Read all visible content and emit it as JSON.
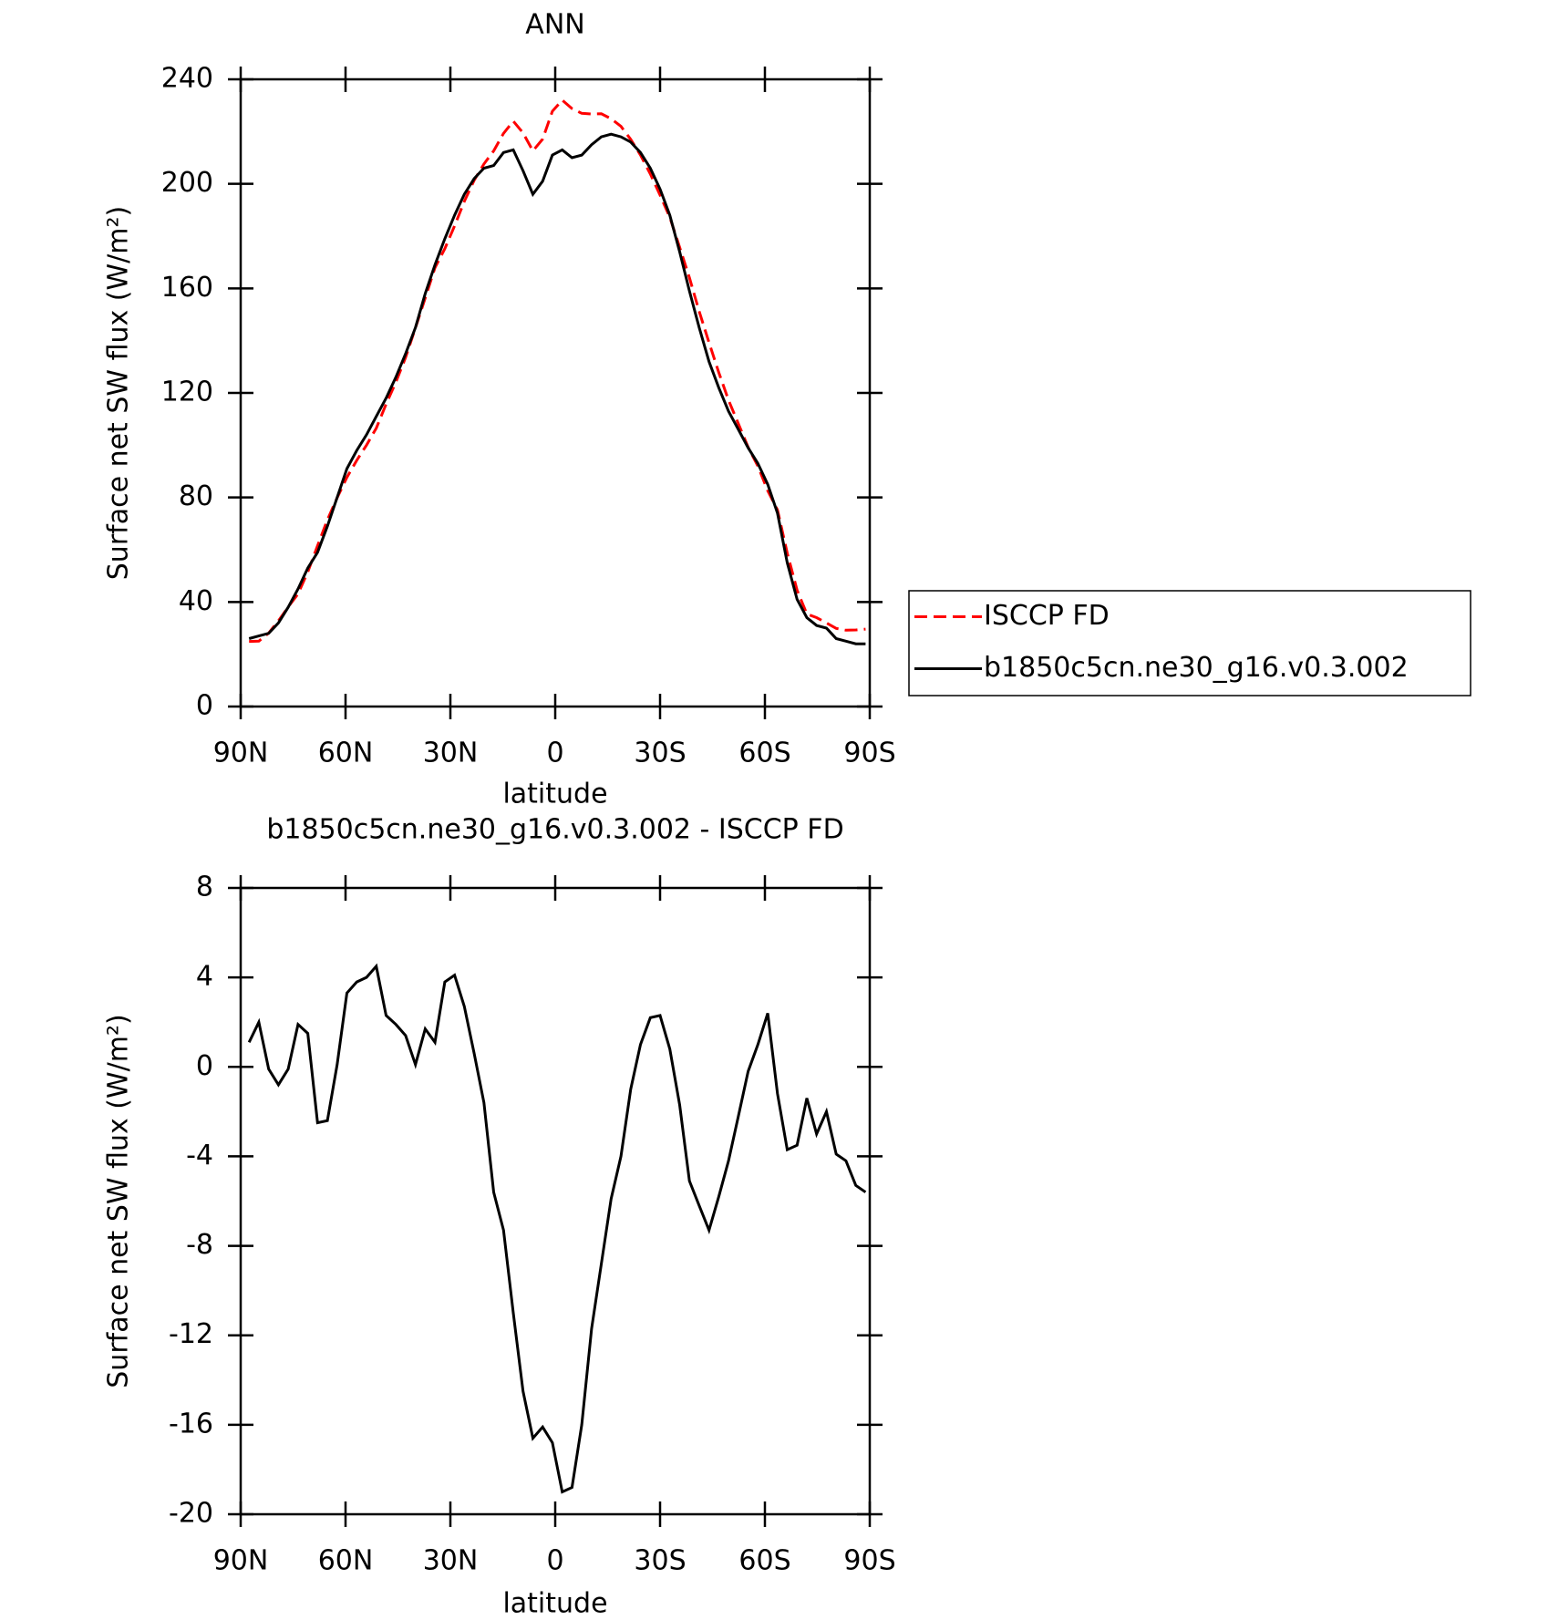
{
  "chart_data": [
    {
      "type": "line",
      "title": "ANN",
      "xlabel": "latitude",
      "ylabel": "Surface net SW flux (W/m²)",
      "x": [
        87.6,
        84.8,
        82.0,
        79.2,
        76.4,
        73.6,
        70.8,
        68.0,
        65.2,
        62.4,
        59.6,
        56.8,
        54.0,
        51.2,
        48.4,
        45.6,
        42.8,
        40.0,
        37.2,
        34.4,
        31.6,
        28.8,
        26.0,
        23.2,
        20.4,
        17.6,
        14.8,
        12.0,
        9.2,
        6.4,
        3.6,
        0.8,
        -2.0,
        -4.8,
        -7.6,
        -10.4,
        -13.2,
        -16.0,
        -18.8,
        -21.6,
        -24.4,
        -27.2,
        -30.0,
        -32.8,
        -35.6,
        -38.4,
        -41.2,
        -44.0,
        -46.8,
        -49.6,
        -52.4,
        -55.2,
        -58.0,
        -60.8,
        -63.6,
        -66.4,
        -69.2,
        -72.0,
        -74.8,
        -77.6,
        -80.4,
        -83.2,
        -86.0,
        -88.8
      ],
      "series": [
        {
          "name": "ISCCP FD",
          "color": "#ff0000",
          "style": "dashed",
          "values": [
            24.9,
            25,
            28.1,
            32.8,
            38.1,
            43.1,
            51.5,
            61.5,
            71.4,
            79.9,
            87.7,
            94.2,
            100,
            106.5,
            115.7,
            124.1,
            133.6,
            144.9,
            156.3,
            167.9,
            175.2,
            183.9,
            193.3,
            201.4,
            207.6,
            212.6,
            219.3,
            224,
            219.5,
            212.6,
            217.1,
            227.8,
            232,
            228.8,
            227,
            226.7,
            226.8,
            224.9,
            222,
            217,
            211,
            203.8,
            195.7,
            187.2,
            175.7,
            164.1,
            151.2,
            139.3,
            127.8,
            117.2,
            108.2,
            99.2,
            92,
            82.6,
            75.2,
            58.7,
            44.5,
            35.4,
            34,
            32,
            29.9,
            29.2,
            29.3,
            29.6
          ]
        },
        {
          "name": "b1850c5cn.ne30_g16.v0.3.002",
          "color": "#000000",
          "style": "solid",
          "values": [
            26,
            27,
            28,
            32,
            38,
            45,
            53,
            59,
            69,
            80,
            91,
            98,
            104,
            111,
            118,
            126,
            135,
            145,
            158,
            169,
            179,
            188,
            196,
            202,
            206,
            207,
            212,
            213,
            205,
            196,
            201,
            211,
            213,
            210,
            211,
            215,
            218,
            219,
            218,
            216,
            212,
            206,
            198,
            188,
            174,
            159,
            145,
            132,
            122,
            113,
            106,
            99,
            93,
            85,
            74,
            55,
            41,
            34,
            31,
            30,
            26,
            25,
            24,
            24
          ]
        }
      ],
      "xlim": [
        90,
        -90
      ],
      "xticks": [
        {
          "value": 90,
          "label": "90N"
        },
        {
          "value": 60,
          "label": "60N"
        },
        {
          "value": 30,
          "label": "30N"
        },
        0,
        {
          "value": -30,
          "label": "30S"
        },
        {
          "value": -60,
          "label": "60S"
        },
        {
          "value": -90,
          "label": "90S"
        }
      ],
      "ylim": [
        0,
        240
      ],
      "yticks": [
        0,
        40,
        80,
        120,
        160,
        200,
        240
      ],
      "legend": "right"
    },
    {
      "type": "line",
      "title": "b1850c5cn.ne30_g16.v0.3.002 - ISCCP FD",
      "xlabel": "latitude",
      "ylabel": "Surface net SW flux (W/m²)",
      "x": [
        87.6,
        84.8,
        82.0,
        79.2,
        76.4,
        73.6,
        70.8,
        68.0,
        65.2,
        62.4,
        59.6,
        56.8,
        54.0,
        51.2,
        48.4,
        45.6,
        42.8,
        40.0,
        37.2,
        34.4,
        31.6,
        28.8,
        26.0,
        23.2,
        20.4,
        17.6,
        14.8,
        12.0,
        9.2,
        6.4,
        3.6,
        0.8,
        -2.0,
        -4.8,
        -7.6,
        -10.4,
        -13.2,
        -16.0,
        -18.8,
        -21.6,
        -24.4,
        -27.2,
        -30.0,
        -32.8,
        -35.6,
        -38.4,
        -41.2,
        -44.0,
        -46.8,
        -49.6,
        -52.4,
        -55.2,
        -58.0,
        -60.8,
        -63.6,
        -66.4,
        -69.2,
        -72.0,
        -74.8,
        -77.6,
        -80.4,
        -83.2,
        -86.0,
        -88.8
      ],
      "series": [
        {
          "color": "#000000",
          "style": "solid",
          "values": [
            1.1,
            2.0,
            -0.1,
            -0.8,
            -0.1,
            1.9,
            1.5,
            -2.5,
            -2.4,
            0.1,
            3.3,
            3.8,
            4.0,
            4.5,
            2.3,
            1.9,
            1.4,
            0.1,
            1.7,
            1.1,
            3.8,
            4.1,
            2.7,
            0.6,
            -1.6,
            -5.6,
            -7.3,
            -11,
            -14.5,
            -16.6,
            -16.1,
            -16.8,
            -19.0,
            -18.8,
            -16.0,
            -11.7,
            -8.8,
            -5.9,
            -4.0,
            -1.0,
            1.0,
            2.2,
            2.3,
            0.8,
            -1.7,
            -5.1,
            -6.2,
            -7.3,
            -5.8,
            -4.2,
            -2.2,
            -0.2,
            1.0,
            2.4,
            -1.2,
            -3.7,
            -3.5,
            -1.4,
            -3.0,
            -2.0,
            -3.9,
            -4.2,
            -5.3,
            -5.6
          ]
        }
      ],
      "xlim": [
        90,
        -90
      ],
      "xticks": [
        {
          "value": 90,
          "label": "90N"
        },
        {
          "value": 60,
          "label": "60N"
        },
        {
          "value": 30,
          "label": "30N"
        },
        0,
        {
          "value": -30,
          "label": "30S"
        },
        {
          "value": -60,
          "label": "60S"
        },
        {
          "value": -90,
          "label": "90S"
        }
      ],
      "ylim": [
        -20,
        8
      ],
      "yticks": [
        -20,
        -16,
        -12,
        -8,
        -4,
        0,
        4,
        8
      ]
    }
  ]
}
